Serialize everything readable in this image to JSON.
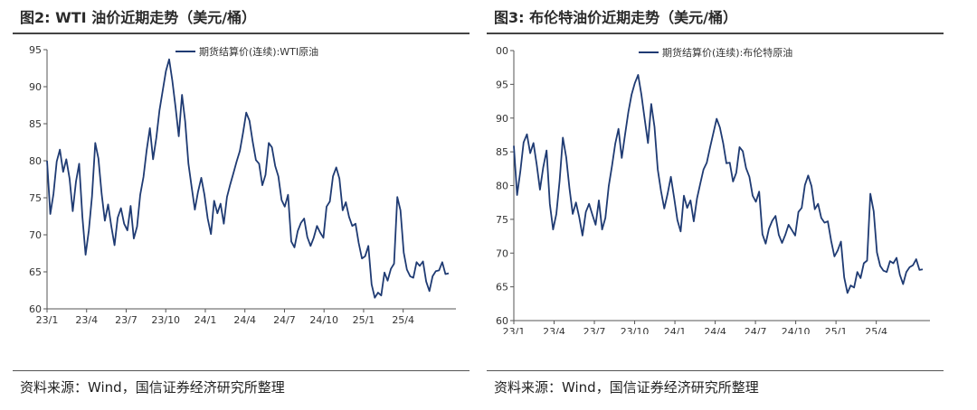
{
  "charts": [
    {
      "title": "图2: WTI 油价近期走势（美元/桶）",
      "source": "资料来源：Wind，国信证券经济研究所整理",
      "chart_data": {
        "type": "line",
        "series": [
          {
            "name": "期货结算价(连续):WTI原油",
            "color": "#1f3b73",
            "values": [
              80,
              72.8,
              75.5,
              79.9,
              81.5,
              78.5,
              80.2,
              77.6,
              73.2,
              77.2,
              79.6,
              72.4,
              67.3,
              70.6,
              75.2,
              82.4,
              80.3,
              75.5,
              71.9,
              74.1,
              71.2,
              68.6,
              72.3,
              73.6,
              71.5,
              70.6,
              73.9,
              69.5,
              71.1,
              75.4,
              77.8,
              81.4,
              84.4,
              80.2,
              83.1,
              86.8,
              89.5,
              92.1,
              93.7,
              90.8,
              87.2,
              83.3,
              88.9,
              85.3,
              79.6,
              76.5,
              73.4,
              75.8,
              77.7,
              75.4,
              72.2,
              70.1,
              74.6,
              72.9,
              74.2,
              71.5,
              75.1,
              76.8,
              78.3,
              79.9,
              81.3,
              83.8,
              86.5,
              85.4,
              82.6,
              80.1,
              79.6,
              76.7,
              78.1,
              82.4,
              81.8,
              79.3,
              77.9,
              74.7,
              73.8,
              75.4,
              69.1,
              68.3,
              70.5,
              71.6,
              72.2,
              69.7,
              68.5,
              69.6,
              71.2,
              70.3,
              69.6,
              73.8,
              74.5,
              77.9,
              79.1,
              77.6,
              73.3,
              74.4,
              72.4,
              71.2,
              71.5,
              68.9,
              66.8,
              67.1,
              68.5,
              63.3,
              61.5,
              62.2,
              61.8,
              64.9,
              63.8,
              65.4,
              66.1,
              75.1,
              73.3,
              67.6,
              65.3,
              64.4,
              64.2,
              66.3,
              65.8,
              66.4,
              63.7,
              62.4,
              64.4,
              65.1,
              65.2,
              66.3,
              64.7,
              64.8
            ],
            "x_start": "23/1",
            "x_end": "25/8"
          }
        ],
        "xticks": [
          "23/1",
          "23/4",
          "23/7",
          "23/10",
          "24/1",
          "24/4",
          "24/7",
          "24/10",
          "25/1",
          "25/4"
        ],
        "yticks": [
          "60",
          "65",
          "70",
          "75",
          "80",
          "85",
          "90",
          "95"
        ],
        "ylim": [
          60,
          95
        ],
        "legend": "top-center"
      }
    },
    {
      "title": "图3: 布伦特油价近期走势（美元/桶）",
      "source": "资料来源：Wind，国信证券经济研究所整理",
      "chart_data": {
        "type": "line",
        "series": [
          {
            "name": "期货结算价(连续):布伦特原油",
            "color": "#1f3b73",
            "values": [
              85.9,
              78.6,
              82.1,
              86.4,
              87.6,
              84.8,
              86.3,
              83.1,
              79.4,
              82.7,
              85.2,
              77.3,
              73.5,
              75.8,
              80.7,
              87.1,
              84.2,
              79.6,
              75.8,
              77.5,
              75.3,
              72.6,
              76.1,
              77.3,
              75.7,
              74.2,
              77.8,
              73.5,
              75.2,
              79.9,
              82.9,
              86.2,
              88.4,
              84.1,
              87.5,
              90.9,
              93.5,
              95.2,
              96.4,
              93.5,
              89.9,
              86.3,
              92.1,
              88.7,
              82.4,
              79.2,
              76.6,
              78.8,
              81.3,
              78.2,
              74.9,
              73.2,
              78.5,
              76.7,
              77.8,
              74.7,
              78.1,
              80.3,
              82.4,
              83.4,
              85.7,
              87.8,
              89.9,
              88.6,
              86.3,
              83.3,
              83.4,
              80.6,
              81.9,
              85.7,
              85.1,
              82.6,
              81.3,
              78.5,
              77.6,
              79.1,
              72.8,
              71.4,
              73.6,
              74.8,
              75.5,
              72.7,
              71.5,
              72.7,
              74.2,
              73.4,
              72.6,
              76.1,
              76.7,
              80.1,
              81.5,
              79.9,
              76.5,
              77.3,
              75.2,
              74.5,
              74.7,
              71.8,
              69.5,
              70.4,
              71.7,
              66.4,
              64.1,
              65.2,
              64.9,
              67.2,
              66.3,
              68.5,
              68.9,
              78.8,
              76.2,
              70.1,
              68.1,
              67.4,
              67.2,
              68.8,
              68.5,
              69.3,
              66.8,
              65.4,
              67.2,
              67.9,
              68.2,
              69.1,
              67.5,
              67.6
            ],
            "x_start": "23/1",
            "x_end": "25/8"
          }
        ],
        "xticks": [
          "23/1",
          "23/4",
          "23/7",
          "23/10",
          "24/1",
          "24/4",
          "24/7",
          "24/10",
          "25/1",
          "25/4"
        ],
        "yticks": [
          "60",
          "65",
          "70",
          "75",
          "80",
          "85",
          "90",
          "95",
          "00"
        ],
        "ylim": [
          60,
          100
        ],
        "legend": "top-center"
      }
    }
  ]
}
